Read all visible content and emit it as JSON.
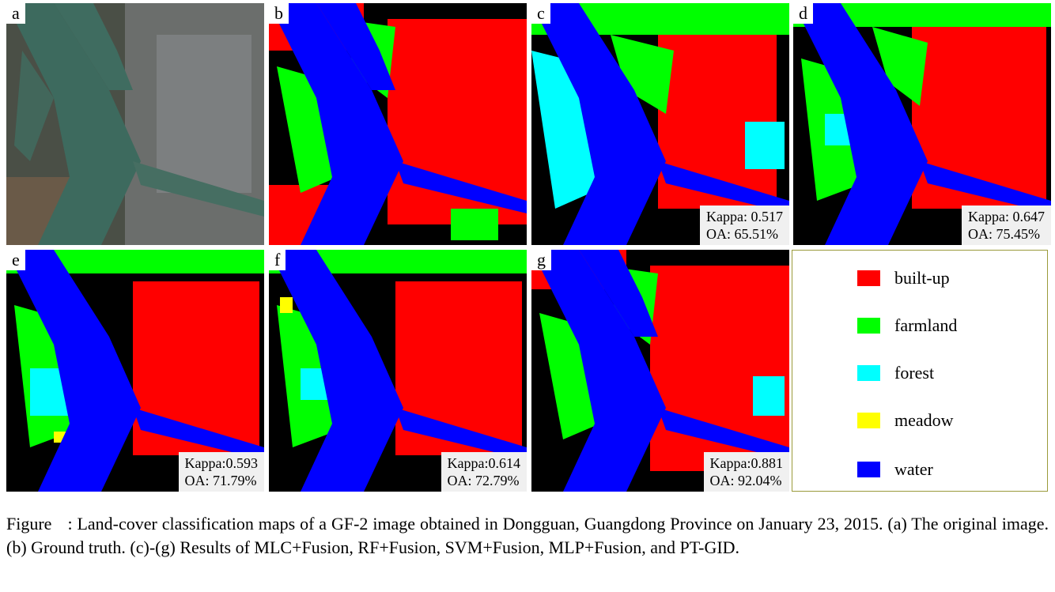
{
  "panels": [
    {
      "id": "a",
      "label": "a"
    },
    {
      "id": "b",
      "label": "b"
    },
    {
      "id": "c",
      "label": "c",
      "metric_line1": "Kappa: 0.517",
      "metric_line2": "OA: 65.51%"
    },
    {
      "id": "d",
      "label": "d",
      "metric_line1": "Kappa: 0.647",
      "metric_line2": "OA: 75.45%"
    },
    {
      "id": "e",
      "label": "e",
      "metric_line1": "Kappa:0.593",
      "metric_line2": "OA: 71.79%"
    },
    {
      "id": "f",
      "label": "f",
      "metric_line1": "Kappa:0.614",
      "metric_line2": "OA: 72.79%"
    },
    {
      "id": "g",
      "label": "g",
      "metric_line1": "Kappa:0.881",
      "metric_line2": "OA: 92.04%"
    }
  ],
  "legend": {
    "items": [
      {
        "label": "built-up",
        "color": "#ff0000"
      },
      {
        "label": "farmland",
        "color": "#00ff00"
      },
      {
        "label": "forest",
        "color": "#00ffff"
      },
      {
        "label": "meadow",
        "color": "#ffff00"
      },
      {
        "label": "water",
        "color": "#0000ff"
      }
    ]
  },
  "caption": {
    "figure_word": "Figure",
    "text": ": Land-cover classification maps of a GF-2 image obtained in Dongguan, Guangdong Province on January 23, 2015. (a) The original image. (b) Ground truth. (c)-(g) Results of MLC+Fusion, RF+Fusion, SVM+Fusion, MLP+Fusion, and PT-GID."
  }
}
